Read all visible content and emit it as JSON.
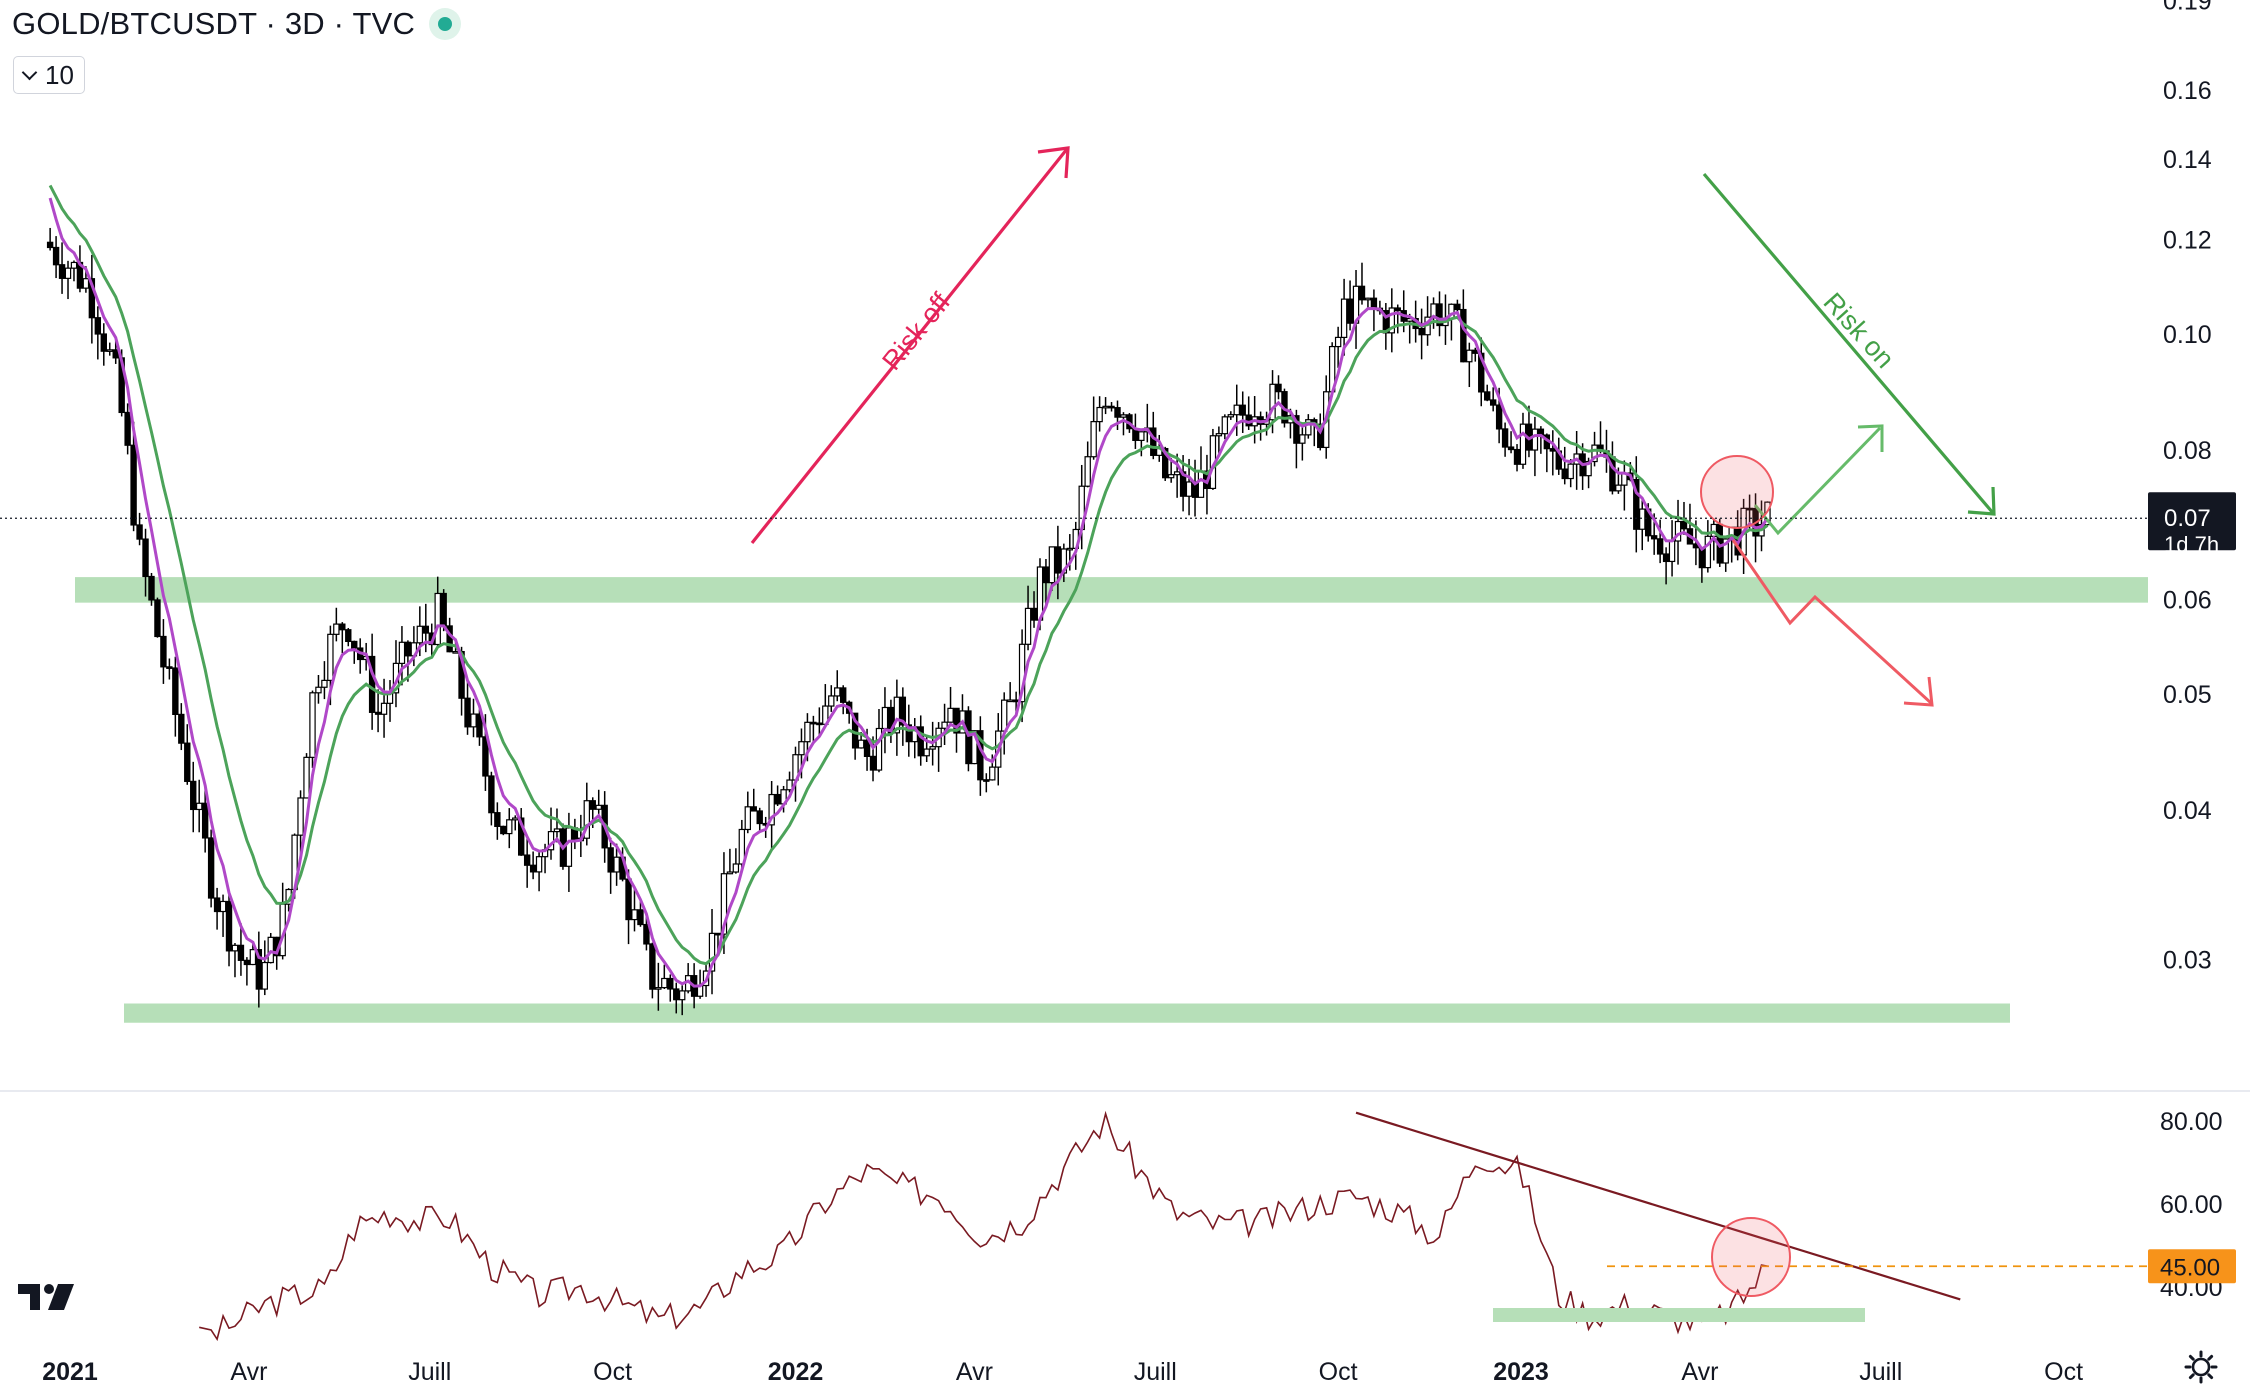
{
  "header": {
    "title": "GOLD/BTCUSDT · 3D · TVC",
    "indicator_toggle_label": "10"
  },
  "price_panel": {
    "y_ticks": [
      "0.19",
      "0.16",
      "0.14",
      "0.12",
      "0.10",
      "0.08",
      "0.07",
      "0.06",
      "0.05",
      "0.04",
      "0.03"
    ],
    "last_price_label": "0.07",
    "countdown_label": "1d 7h",
    "annotations": {
      "risk_off": "Risk off",
      "risk_on": "Risk on"
    },
    "colors": {
      "candle": "#000000",
      "ema_fast": "#b048c8",
      "ema_slow": "#4ca35a",
      "zone": "#b6dfb8",
      "risk_off": "#e4245a",
      "risk_on": "#43a047",
      "bear_arrow": "#ef5a63",
      "bull_arrow": "#66bb6a"
    }
  },
  "rsi_panel": {
    "y_ticks": [
      "80.00",
      "60.00",
      "40.00"
    ],
    "current_label": "45.00",
    "colors": {
      "line": "#7a1a22",
      "trendline": "#7a1a22",
      "dashed": "#f0930d",
      "badge": "#f7931a"
    }
  },
  "x_axis": {
    "ticks": [
      {
        "label": "2021",
        "bold": true
      },
      {
        "label": "Avr",
        "bold": false
      },
      {
        "label": "Juill",
        "bold": false
      },
      {
        "label": "Oct",
        "bold": false
      },
      {
        "label": "2022",
        "bold": true
      },
      {
        "label": "Avr",
        "bold": false
      },
      {
        "label": "Juill",
        "bold": false
      },
      {
        "label": "Oct",
        "bold": false
      },
      {
        "label": "2023",
        "bold": true
      },
      {
        "label": "Avr",
        "bold": false
      },
      {
        "label": "Juill",
        "bold": false
      },
      {
        "label": "Oct",
        "bold": false
      }
    ]
  },
  "chart_data": {
    "type": "candlestick",
    "title": "GOLD/BTCUSDT · 3D · TVC",
    "y_scale": "log",
    "ylim": [
      0.025,
      0.19
    ],
    "x_range": [
      "2020-12-20",
      "2023-10-30"
    ],
    "resistance_support_zones": [
      [
        0.0595,
        0.0625
      ],
      [
        0.0265,
        0.0275
      ]
    ],
    "last_price": 0.07,
    "close_series": {
      "dates": [
        "2020-12-22",
        "2021-01-10",
        "2021-01-25",
        "2021-02-05",
        "2021-02-18",
        "2021-03-05",
        "2021-03-15",
        "2021-03-28",
        "2021-04-08",
        "2021-04-20",
        "2021-05-05",
        "2021-05-20",
        "2021-06-05",
        "2021-06-20",
        "2021-07-05",
        "2021-07-20",
        "2021-08-05",
        "2021-08-20",
        "2021-09-05",
        "2021-09-20",
        "2021-10-05",
        "2021-10-20",
        "2021-11-05",
        "2021-11-20",
        "2021-12-05",
        "2021-12-20",
        "2022-01-05",
        "2022-01-20",
        "2022-02-05",
        "2022-02-20",
        "2022-03-05",
        "2022-03-20",
        "2022-04-05",
        "2022-04-20",
        "2022-05-05",
        "2022-05-20",
        "2022-06-05",
        "2022-06-20",
        "2022-07-05",
        "2022-07-20",
        "2022-08-05",
        "2022-08-20",
        "2022-09-05",
        "2022-09-20",
        "2022-10-05",
        "2022-10-20",
        "2022-11-05",
        "2022-11-20",
        "2022-12-05",
        "2022-12-20",
        "2023-01-05",
        "2023-01-20",
        "2023-02-05",
        "2023-02-20",
        "2023-03-05",
        "2023-03-20",
        "2023-04-05",
        "2023-04-20",
        "2023-05-05"
      ],
      "values": [
        0.118,
        0.11,
        0.09,
        0.065,
        0.052,
        0.04,
        0.034,
        0.03,
        0.029,
        0.033,
        0.052,
        0.058,
        0.048,
        0.054,
        0.058,
        0.048,
        0.039,
        0.037,
        0.037,
        0.04,
        0.035,
        0.029,
        0.028,
        0.031,
        0.038,
        0.041,
        0.046,
        0.05,
        0.044,
        0.048,
        0.046,
        0.049,
        0.043,
        0.049,
        0.063,
        0.065,
        0.09,
        0.085,
        0.076,
        0.073,
        0.082,
        0.088,
        0.087,
        0.08,
        0.106,
        0.104,
        0.102,
        0.105,
        0.098,
        0.083,
        0.08,
        0.078,
        0.08,
        0.076,
        0.068,
        0.067,
        0.066,
        0.068,
        0.07
      ]
    },
    "ema_fast": {
      "name": "",
      "color": "#b048c8"
    },
    "ema_slow": {
      "name": "",
      "color": "#4ca35a"
    },
    "rsi": {
      "ylim": [
        25,
        85
      ],
      "dates": [
        "2021-03-01",
        "2021-03-20",
        "2021-04-10",
        "2021-05-10",
        "2021-05-25",
        "2021-06-10",
        "2021-06-25",
        "2021-07-10",
        "2021-08-01",
        "2021-08-25",
        "2021-09-15",
        "2021-10-05",
        "2021-10-25",
        "2021-11-15",
        "2021-12-05",
        "2021-12-25",
        "2022-01-15",
        "2022-02-05",
        "2022-02-25",
        "2022-03-15",
        "2022-04-05",
        "2022-04-25",
        "2022-05-15",
        "2022-06-05",
        "2022-06-20",
        "2022-07-10",
        "2022-08-01",
        "2022-08-25",
        "2022-09-20",
        "2022-10-10",
        "2022-11-01",
        "2022-11-20",
        "2022-12-10",
        "2023-01-01",
        "2023-01-20",
        "2023-02-05",
        "2023-02-25",
        "2023-03-15",
        "2023-04-05",
        "2023-04-20",
        "2023-05-05"
      ],
      "values": [
        26,
        30,
        36,
        40,
        55,
        58,
        56,
        57,
        45,
        38,
        40,
        36,
        32,
        35,
        44,
        48,
        60,
        68,
        64,
        62,
        52,
        56,
        68,
        80,
        70,
        58,
        55,
        56,
        60,
        62,
        58,
        52,
        72,
        68,
        38,
        33,
        36,
        33,
        31,
        36,
        45
      ]
    },
    "rsi_trendline": [
      [
        "2022-10-10",
        82
      ],
      [
        "2023-08-10",
        37
      ]
    ],
    "rsi_level": 45
  }
}
